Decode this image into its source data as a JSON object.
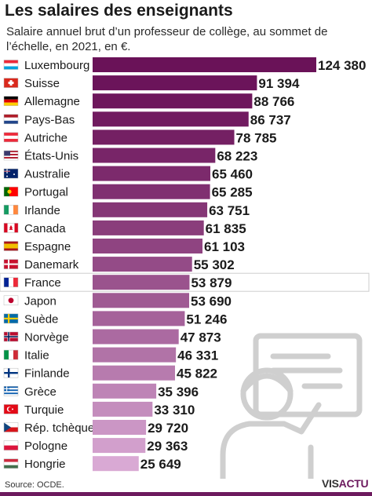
{
  "header": {
    "title": "Les salaires des enseignants",
    "subtitle": "Salaire annuel brut d’un professeur de collège, au sommet de l’échelle, en 2021, en €."
  },
  "footer": {
    "source": "Source: OCDE.",
    "logo_main": "VIS",
    "logo_accent": "ACTU"
  },
  "colors": {
    "bar_dark": "#6a1258",
    "bar_light": "#d9a9d4",
    "highlight_border": "#cccccc"
  },
  "chart_data": {
    "type": "bar",
    "orientation": "horizontal",
    "categories": [
      "Luxembourg",
      "Suisse",
      "Allemagne",
      "Pays-Bas",
      "Autriche",
      "États-Unis",
      "Australie",
      "Portugal",
      "Irlande",
      "Canada",
      "Espagne",
      "Danemark",
      "France",
      "Japon",
      "Suède",
      "Norvège",
      "Italie",
      "Finlande",
      "Grèce",
      "Turquie",
      "Rép. tchèque",
      "Pologne",
      "Hongrie"
    ],
    "values": [
      124380,
      91394,
      88766,
      86737,
      78785,
      68223,
      65460,
      65285,
      63751,
      61835,
      61103,
      55302,
      53879,
      53690,
      51246,
      47873,
      46331,
      45822,
      35396,
      33310,
      29720,
      29363,
      25649
    ],
    "value_labels": [
      "124 380",
      "91 394",
      "88 766",
      "86 737",
      "78 785",
      "68 223",
      "65 460",
      "65 285",
      "63 751",
      "61 835",
      "61 103",
      "55 302",
      "53 879",
      "53 690",
      "51 246",
      "47 873",
      "46 331",
      "45 822",
      "35 396",
      "33 310",
      "29 720",
      "29 363",
      "25 649"
    ],
    "flags": [
      "flag-luxembourg-icon",
      "flag-switzerland-icon",
      "flag-germany-icon",
      "flag-netherlands-icon",
      "flag-austria-icon",
      "flag-usa-icon",
      "flag-australia-icon",
      "flag-portugal-icon",
      "flag-ireland-icon",
      "flag-canada-icon",
      "flag-spain-icon",
      "flag-denmark-icon",
      "flag-france-icon",
      "flag-japan-icon",
      "flag-sweden-icon",
      "flag-norway-icon",
      "flag-italy-icon",
      "flag-finland-icon",
      "flag-greece-icon",
      "flag-turkey-icon",
      "flag-czech-icon",
      "flag-poland-icon",
      "flag-hungary-icon"
    ],
    "highlight": "France",
    "grid": false,
    "legend": "none"
  }
}
